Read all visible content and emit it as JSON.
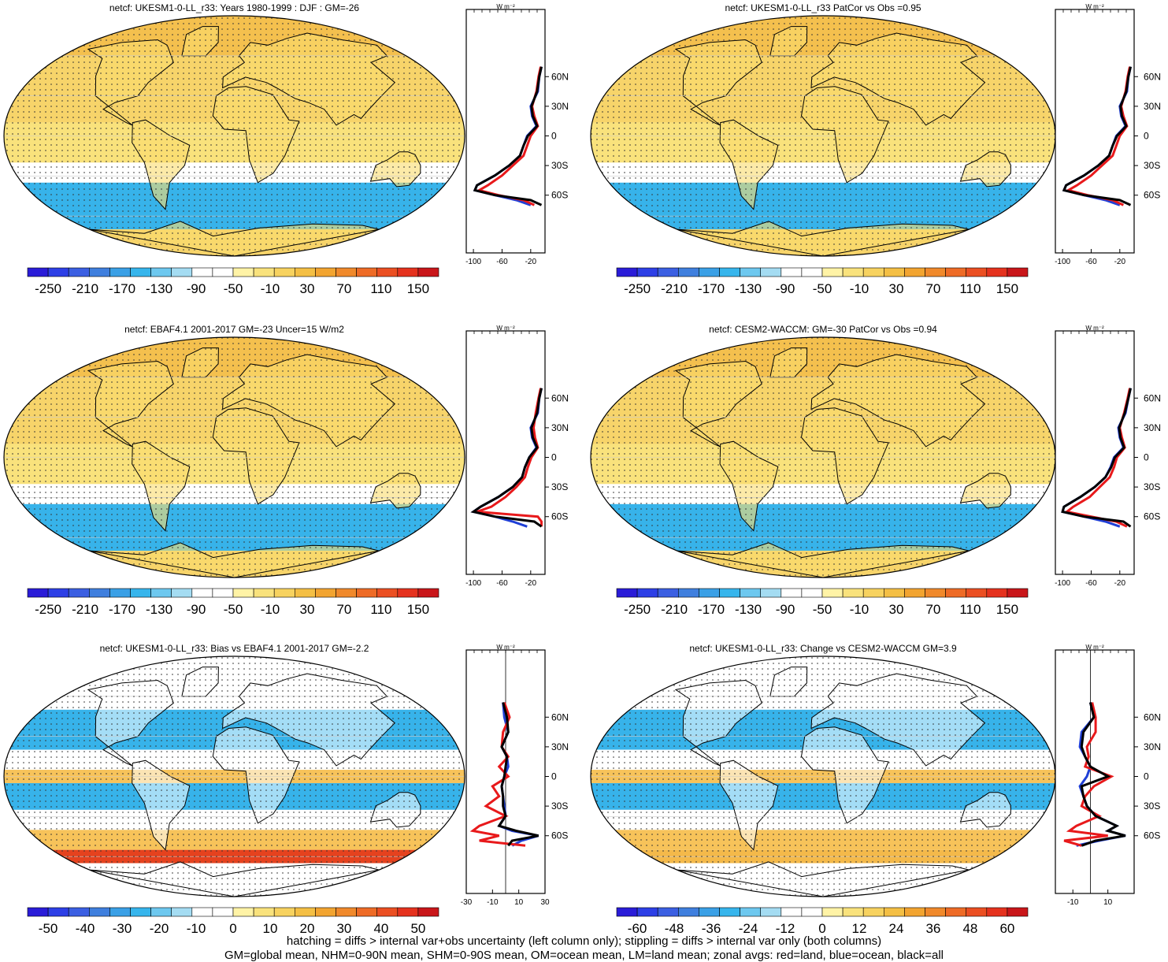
{
  "lat_ticks": [
    "60N",
    "30N",
    "0",
    "30S",
    "60S"
  ],
  "lat_values": [
    60,
    30,
    0,
    -30,
    -60
  ],
  "unit_label": "W m⁻²",
  "colors": {
    "ocean": "#1f3fd6",
    "land": "#e8191b",
    "all": "#000000",
    "negative": "#37b3ea",
    "neutral": "#ffffff",
    "positive": "#f7d46a"
  },
  "palette": [
    "#2a1cd8",
    "#2d3fe6",
    "#3b5fe2",
    "#3f7fde",
    "#3aa0e6",
    "#36b5ec",
    "#6dc8ef",
    "#a4dcf2",
    "#ffffff",
    "#ffffff",
    "#fff3a6",
    "#f9e27c",
    "#f7d25f",
    "#f4bf44",
    "#f2a430",
    "#f0892b",
    "#ee6b26",
    "#eb4f22",
    "#e5321e",
    "#c9161a"
  ],
  "panels": [
    {
      "title": "netcf: UKESM1-0-LL_r33: Years 1980-1999 : DJF : GM=-26",
      "colorbar_labels": [
        "-250",
        "-210",
        "-170",
        "-130",
        "-90",
        "-50",
        "-10",
        "30",
        "70",
        "110",
        "150"
      ],
      "zonal_xticks": [
        "-100",
        "-60",
        "-20"
      ]
    },
    {
      "title": "netcf: UKESM1-0-LL_r33 PatCor vs Obs =0.95",
      "colorbar_labels": [
        "-250",
        "-210",
        "-170",
        "-130",
        "-90",
        "-50",
        "-10",
        "30",
        "70",
        "110",
        "150"
      ],
      "zonal_xticks": [
        "-100",
        "-60",
        "-20"
      ]
    },
    {
      "title": "netcf: EBAF4.1 2001-2017 GM=-23 Uncer=15 W/m2",
      "colorbar_labels": [
        "-250",
        "-210",
        "-170",
        "-130",
        "-90",
        "-50",
        "-10",
        "30",
        "70",
        "110",
        "150"
      ],
      "zonal_xticks": [
        "-100",
        "-60",
        "-20"
      ]
    },
    {
      "title": "netcf: CESM2-WACCM: GM=-30 PatCor vs Obs =0.94",
      "colorbar_labels": [
        "-250",
        "-210",
        "-170",
        "-130",
        "-90",
        "-50",
        "-10",
        "30",
        "70",
        "110",
        "150"
      ],
      "zonal_xticks": [
        "-100",
        "-60",
        "-20"
      ]
    },
    {
      "title": "netcf: UKESM1-0-LL_r33: Bias vs EBAF4.1 2001-2017 GM=-2.2",
      "colorbar_labels": [
        "-50",
        "-40",
        "-30",
        "-20",
        "-10",
        "0",
        "10",
        "20",
        "30",
        "40",
        "50"
      ],
      "zonal_xticks": [
        "-30",
        "-10",
        "10",
        "30"
      ]
    },
    {
      "title": "netcf: UKESM1-0-LL_r33: Change vs CESM2-WACCM GM=3.9",
      "colorbar_labels": [
        "-60",
        "-48",
        "-36",
        "-24",
        "-12",
        "0",
        "12",
        "24",
        "36",
        "48",
        "60"
      ],
      "zonal_xticks": [
        "-10",
        "10"
      ]
    }
  ],
  "chart_data": [
    {
      "type": "line",
      "panel": "UKESM1-0-LL_r33 DJF",
      "x_range": [
        -110,
        0
      ],
      "lat": [
        70,
        60,
        45,
        30,
        20,
        10,
        0,
        -10,
        -20,
        -30,
        -40,
        -50,
        -55,
        -60,
        -65,
        -70
      ],
      "series": [
        {
          "color": "ocean",
          "values": [
            -5,
            -8,
            -10,
            -20,
            -18,
            -12,
            -25,
            -30,
            -35,
            -50,
            -70,
            -95,
            -98,
            -70,
            -40,
            -20
          ]
        },
        {
          "color": "land",
          "values": [
            -6,
            -9,
            -12,
            -18,
            -15,
            -10,
            -20,
            -25,
            -30,
            -45,
            -60,
            -80,
            -92,
            -65,
            -30,
            -15
          ]
        },
        {
          "color": "all",
          "values": [
            -5,
            -8,
            -11,
            -19,
            -17,
            -11,
            -24,
            -30,
            -35,
            -50,
            -70,
            -95,
            -98,
            -70,
            -20,
            -5
          ]
        }
      ]
    },
    {
      "type": "line",
      "panel": "UKESM1-0-LL_r33 PatCor",
      "x_range": [
        -110,
        0
      ],
      "lat": [
        70,
        60,
        45,
        30,
        20,
        10,
        0,
        -10,
        -20,
        -30,
        -40,
        -50,
        -55,
        -60,
        -65,
        -70
      ],
      "series": [
        {
          "color": "ocean",
          "values": [
            -5,
            -8,
            -10,
            -20,
            -18,
            -12,
            -25,
            -30,
            -35,
            -50,
            -70,
            -95,
            -98,
            -70,
            -40,
            -20
          ]
        },
        {
          "color": "land",
          "values": [
            -6,
            -9,
            -12,
            -18,
            -15,
            -10,
            -20,
            -25,
            -30,
            -45,
            -60,
            -80,
            -92,
            -65,
            -30,
            -15
          ]
        },
        {
          "color": "all",
          "values": [
            -5,
            -8,
            -11,
            -19,
            -17,
            -11,
            -24,
            -30,
            -35,
            -50,
            -70,
            -95,
            -98,
            -70,
            -20,
            -5
          ]
        }
      ]
    },
    {
      "type": "line",
      "panel": "EBAF4.1",
      "x_range": [
        -110,
        0
      ],
      "lat": [
        70,
        60,
        45,
        30,
        20,
        10,
        0,
        -10,
        -20,
        -30,
        -40,
        -50,
        -55,
        -60,
        -65,
        -70
      ],
      "series": [
        {
          "color": "ocean",
          "values": [
            -5,
            -8,
            -10,
            -20,
            -18,
            -12,
            -22,
            -28,
            -32,
            -45,
            -65,
            -90,
            -100,
            -70,
            -45,
            -25
          ]
        },
        {
          "color": "land",
          "values": [
            -6,
            -9,
            -13,
            -16,
            -14,
            -10,
            -19,
            -24,
            -28,
            -40,
            -55,
            -75,
            -95,
            -10,
            -5,
            -5
          ]
        },
        {
          "color": "all",
          "values": [
            -5,
            -8,
            -11,
            -19,
            -17,
            -11,
            -22,
            -28,
            -32,
            -45,
            -65,
            -90,
            -100,
            -70,
            -15,
            -5
          ]
        }
      ]
    },
    {
      "type": "line",
      "panel": "CESM2-WACCM",
      "x_range": [
        -110,
        0
      ],
      "lat": [
        70,
        60,
        45,
        30,
        20,
        10,
        0,
        -10,
        -20,
        -30,
        -40,
        -50,
        -55,
        -60,
        -65,
        -70
      ],
      "series": [
        {
          "color": "ocean",
          "values": [
            -5,
            -8,
            -12,
            -22,
            -20,
            -15,
            -28,
            -33,
            -40,
            -55,
            -75,
            -98,
            -100,
            -70,
            -40,
            -20
          ]
        },
        {
          "color": "land",
          "values": [
            -6,
            -9,
            -14,
            -20,
            -17,
            -13,
            -24,
            -28,
            -34,
            -48,
            -62,
            -85,
            -94,
            -60,
            -25,
            -10
          ]
        },
        {
          "color": "all",
          "values": [
            -5,
            -8,
            -13,
            -21,
            -19,
            -14,
            -27,
            -32,
            -40,
            -55,
            -75,
            -98,
            -100,
            -70,
            -15,
            -5
          ]
        }
      ]
    },
    {
      "type": "line",
      "panel": "Bias vs EBAF4.1",
      "x_range": [
        -30,
        30
      ],
      "lat": [
        75,
        60,
        45,
        30,
        20,
        10,
        0,
        -10,
        -20,
        -30,
        -40,
        -50,
        -55,
        -60,
        -65,
        -70
      ],
      "series": [
        {
          "color": "ocean",
          "values": [
            -2,
            -1,
            2,
            -3,
            1,
            2,
            -1,
            -3,
            -2,
            -1,
            0,
            -5,
            5,
            25,
            12,
            5
          ]
        },
        {
          "color": "land",
          "values": [
            -1,
            3,
            -2,
            -3,
            2,
            -5,
            2,
            -10,
            -5,
            -15,
            0,
            -20,
            -25,
            -5,
            -20,
            15
          ]
        },
        {
          "color": "all",
          "values": [
            -2,
            1,
            2,
            -3,
            1,
            0,
            -1,
            -3,
            -2,
            -2,
            0,
            -5,
            8,
            25,
            5,
            2
          ]
        }
      ]
    },
    {
      "type": "line",
      "panel": "Change vs CESM2-WACCM",
      "x_range": [
        -20,
        25
      ],
      "lat": [
        75,
        60,
        45,
        30,
        20,
        10,
        0,
        -10,
        -20,
        -30,
        -40,
        -50,
        -55,
        -60,
        -65,
        -70
      ],
      "series": [
        {
          "color": "ocean",
          "values": [
            0,
            2,
            -5,
            -6,
            -3,
            0,
            -2,
            -6,
            -4,
            -2,
            3,
            15,
            10,
            20,
            5,
            -8
          ]
        },
        {
          "color": "land",
          "values": [
            1,
            3,
            3,
            -2,
            -1,
            -3,
            12,
            2,
            -3,
            -5,
            5,
            -8,
            -12,
            10,
            -15,
            -5
          ]
        },
        {
          "color": "all",
          "values": [
            0,
            2,
            -4,
            -5,
            -3,
            0,
            10,
            -5,
            -4,
            -2,
            3,
            15,
            10,
            20,
            3,
            -5
          ]
        }
      ]
    }
  ],
  "footer": {
    "line1": "hatching = diffs > internal var+obs uncertainty (left column only); stippling = diffs > internal var only (both columns)",
    "line2": "GM=global mean, NHM=0-90N mean, SHM=0-90S mean, OM=ocean mean, LM=land mean; zonal avgs: red=land, blue=ocean, black=all"
  }
}
